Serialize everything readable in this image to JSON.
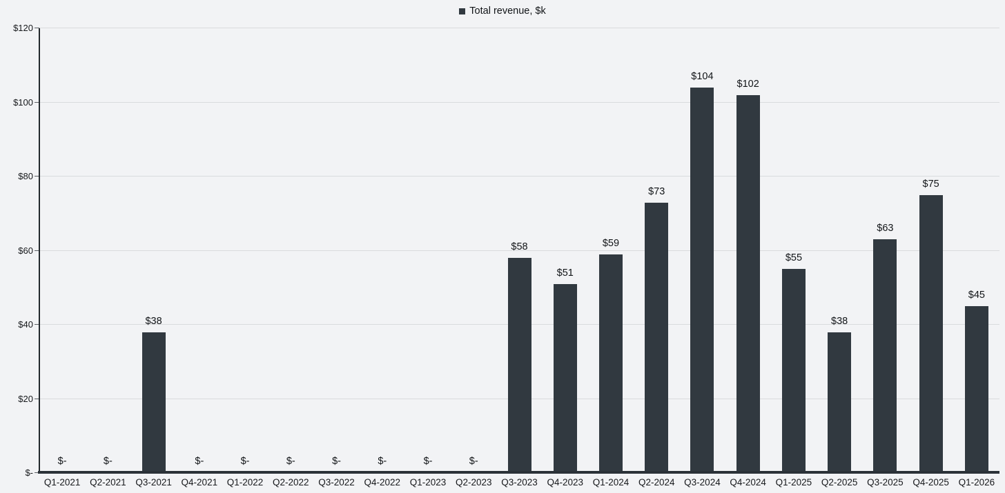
{
  "chart_data": {
    "type": "bar",
    "title": "",
    "legend": "Total revenue, $k",
    "legend_position": "top-center",
    "xlabel": "",
    "ylabel": "",
    "categories": [
      "Q1-2021",
      "Q2-2021",
      "Q3-2021",
      "Q4-2021",
      "Q1-2022",
      "Q2-2022",
      "Q3-2022",
      "Q4-2022",
      "Q1-2023",
      "Q2-2023",
      "Q3-2023",
      "Q4-2023",
      "Q1-2024",
      "Q2-2024",
      "Q3-2024",
      "Q4-2024",
      "Q1-2025",
      "Q2-2025",
      "Q3-2025",
      "Q4-2025",
      "Q1-2026"
    ],
    "series": [
      {
        "name": "Total revenue, $k",
        "values": [
          0,
          0,
          38,
          0,
          0,
          0,
          0,
          0,
          0,
          0,
          58,
          51,
          59,
          73,
          104,
          102,
          55,
          38,
          63,
          75,
          45
        ],
        "data_labels": [
          "$-",
          "$-",
          "$38",
          "$-",
          "$-",
          "$-",
          "$-",
          "$-",
          "$-",
          "$-",
          "$58",
          "$51",
          "$59",
          "$73",
          "$104",
          "$102",
          "$55",
          "$38",
          "$63",
          "$75",
          "$45"
        ]
      }
    ],
    "ylim": [
      0,
      120
    ],
    "yticks": {
      "values": [
        0,
        20,
        40,
        60,
        80,
        100,
        120
      ],
      "labels": [
        "$-",
        "$20",
        "$40",
        "$60",
        "$80",
        "$100",
        "$120"
      ]
    },
    "grid": true,
    "colors": {
      "bar": "#313940",
      "background": "#f2f3f5",
      "gridline": "#d9dbdd",
      "axis_line": "#2b3238",
      "text": "#17191c"
    }
  }
}
